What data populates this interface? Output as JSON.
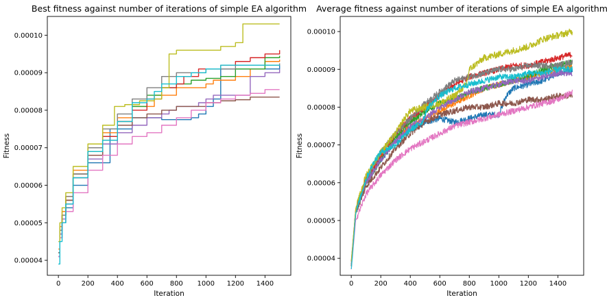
{
  "chart_data": [
    {
      "type": "line",
      "title": "Best fitness against number of iterations of simple EA algorithm",
      "xlabel": "Iteration",
      "ylabel": "Fitness",
      "xlim": [
        -75,
        1575
      ],
      "ylim": [
        3.6e-05,
        0.000105
      ],
      "xticks": [
        0,
        200,
        400,
        600,
        800,
        1000,
        1200,
        1400
      ],
      "xtick_labels": [
        "0",
        "200",
        "400",
        "600",
        "800",
        "1000",
        "1200",
        "1400"
      ],
      "yticks": [
        4e-05,
        5e-05,
        6e-05,
        7e-05,
        8e-05,
        9e-05,
        0.0001
      ],
      "ytick_labels": [
        "0.00004",
        "0.00005",
        "0.00006",
        "0.00007",
        "0.00008",
        "0.00009",
        "0.00010"
      ],
      "grid": false,
      "style": "step",
      "series": [
        {
          "color": "#1f77b4",
          "x": [
            0,
            10,
            25,
            50,
            100,
            200,
            350,
            500,
            700,
            900,
            950,
            1000,
            1050,
            1100,
            1499
          ],
          "y": [
            4.1e-05,
            4.6e-05,
            5e-05,
            5.4e-05,
            6e-05,
            6.6e-05,
            7.5e-05,
            7.8e-05,
            7.75e-05,
            7.8e-05,
            7.9e-05,
            8.1e-05,
            8.3e-05,
            9.1e-05,
            9.2e-05
          ]
        },
        {
          "color": "#ff7f0e",
          "x": [
            0,
            10,
            25,
            50,
            100,
            200,
            300,
            400,
            500,
            650,
            800,
            1000,
            1050,
            1200,
            1300,
            1400,
            1499
          ],
          "y": [
            4.3e-05,
            4.9e-05,
            5.3e-05,
            5.7e-05,
            6.4e-05,
            7e-05,
            7.4e-05,
            7.8e-05,
            8.1e-05,
            8.4e-05,
            8.6e-05,
            8.7e-05,
            8.8e-05,
            8.9e-05,
            9.1e-05,
            9.3e-05,
            9.35e-05
          ]
        },
        {
          "color": "#2ca02c",
          "x": [
            0,
            10,
            25,
            50,
            100,
            200,
            300,
            400,
            500,
            600,
            700,
            800,
            900,
            1000,
            1100,
            1200,
            1400,
            1499
          ],
          "y": [
            4.2e-05,
            4.8e-05,
            5.2e-05,
            5.6e-05,
            6.3e-05,
            6.9e-05,
            7.3e-05,
            7.7e-05,
            8.1e-05,
            8.4e-05,
            8.6e-05,
            8.7e-05,
            8.8e-05,
            8.85e-05,
            8.9e-05,
            9.1e-05,
            9.4e-05,
            9.45e-05
          ]
        },
        {
          "color": "#d62728",
          "x": [
            0,
            10,
            25,
            50,
            100,
            200,
            300,
            400,
            500,
            600,
            700,
            800,
            850,
            950,
            1100,
            1200,
            1300,
            1400,
            1499
          ],
          "y": [
            4.2e-05,
            4.8e-05,
            5.2e-05,
            5.6e-05,
            6.3e-05,
            6.8e-05,
            7.3e-05,
            7.7e-05,
            8e-05,
            8.3e-05,
            8.6e-05,
            8.7e-05,
            8.9e-05,
            9.1e-05,
            9.2e-05,
            9.3e-05,
            9.4e-05,
            9.5e-05,
            9.6e-05
          ]
        },
        {
          "color": "#9467bd",
          "x": [
            0,
            10,
            25,
            50,
            100,
            200,
            300,
            400,
            500,
            600,
            700,
            750,
            800,
            950,
            1000,
            1050,
            1300,
            1400,
            1499
          ],
          "y": [
            4.1e-05,
            4.7e-05,
            5.1e-05,
            5.5e-05,
            6.2e-05,
            6.7e-05,
            7.1e-05,
            7.4e-05,
            7.6e-05,
            7.8e-05,
            7.9e-05,
            8e-05,
            8.1e-05,
            8.2e-05,
            8.3e-05,
            8.4e-05,
            8.9e-05,
            9e-05,
            9.1e-05
          ]
        },
        {
          "color": "#8c564b",
          "x": [
            0,
            10,
            25,
            50,
            100,
            200,
            300,
            400,
            500,
            600,
            700,
            800,
            900,
            1000,
            1100,
            1200,
            1300,
            1499
          ],
          "y": [
            4.2e-05,
            4.8e-05,
            5.2e-05,
            5.6e-05,
            6.2e-05,
            6.8e-05,
            7.2e-05,
            7.6e-05,
            7.8e-05,
            7.9e-05,
            8e-05,
            8.1e-05,
            8.1e-05,
            8.2e-05,
            8.25e-05,
            8.28e-05,
            8.35e-05,
            8.35e-05
          ]
        },
        {
          "color": "#e377c2",
          "x": [
            0,
            10,
            25,
            50,
            100,
            200,
            300,
            400,
            500,
            600,
            700,
            800,
            900,
            1000,
            1100,
            1200,
            1300,
            1400,
            1499
          ],
          "y": [
            4.1e-05,
            4.6e-05,
            5e-05,
            5.3e-05,
            5.8e-05,
            6.4e-05,
            6.8e-05,
            7.1e-05,
            7.3e-05,
            7.4e-05,
            7.6e-05,
            7.8e-05,
            8e-05,
            8.2e-05,
            8.3e-05,
            8.4e-05,
            8.45e-05,
            8.55e-05,
            8.55e-05
          ]
        },
        {
          "color": "#7f7f7f",
          "x": [
            0,
            10,
            25,
            50,
            100,
            200,
            300,
            400,
            500,
            600,
            700,
            800,
            900,
            1000,
            1100,
            1200,
            1300,
            1499
          ],
          "y": [
            4.2e-05,
            4.8e-05,
            5.2e-05,
            5.7e-05,
            6.3e-05,
            7e-05,
            7.5e-05,
            7.9e-05,
            8.3e-05,
            8.6e-05,
            8.9e-05,
            9e-05,
            9e-05,
            9.1e-05,
            9.1e-05,
            9.2e-05,
            9.2e-05,
            9.25e-05
          ]
        },
        {
          "color": "#bcbd22",
          "x": [
            0,
            10,
            25,
            50,
            100,
            200,
            300,
            380,
            450,
            550,
            650,
            700,
            750,
            800,
            1000,
            1100,
            1200,
            1250,
            1499
          ],
          "y": [
            4.5e-05,
            5e-05,
            5.4e-05,
            5.8e-05,
            6.5e-05,
            7.1e-05,
            7.6e-05,
            8.1e-05,
            8.15e-05,
            8.25e-05,
            8.3e-05,
            8.6e-05,
            9.5e-05,
            9.6e-05,
            9.6e-05,
            9.7e-05,
            9.8e-05,
            0.000103,
            0.000103
          ]
        },
        {
          "color": "#17becf",
          "x": [
            0,
            10,
            25,
            50,
            100,
            200,
            300,
            400,
            500,
            600,
            650,
            700,
            800,
            900,
            1000,
            1100,
            1200,
            1300,
            1400,
            1499
          ],
          "y": [
            3.9e-05,
            4.5e-05,
            5e-05,
            5.5e-05,
            6.2e-05,
            6.9e-05,
            7.2e-05,
            7.7e-05,
            8.2e-05,
            8.3e-05,
            8.5e-05,
            8.7e-05,
            8.9e-05,
            9e-05,
            9.1e-05,
            9.2e-05,
            9.2e-05,
            9.2e-05,
            9.2e-05,
            9.2e-05
          ]
        }
      ]
    },
    {
      "type": "line",
      "title": "Average fitness against number of iterations of simple EA algorithm",
      "xlabel": "Iteration",
      "ylabel": "Fitness",
      "xlim": [
        -75,
        1575
      ],
      "ylim": [
        3.55e-05,
        0.000104
      ],
      "xticks": [
        0,
        200,
        400,
        600,
        800,
        1000,
        1200,
        1400
      ],
      "xtick_labels": [
        "0",
        "200",
        "400",
        "600",
        "800",
        "1000",
        "1200",
        "1400"
      ],
      "yticks": [
        4e-05,
        5e-05,
        6e-05,
        7e-05,
        8e-05,
        9e-05,
        0.0001
      ],
      "ytick_labels": [
        "0.00004",
        "0.00005",
        "0.00006",
        "0.00007",
        "0.00008",
        "0.00009",
        "0.00010"
      ],
      "grid": false,
      "style": "noisy",
      "series": [
        {
          "color": "#1f77b4",
          "noise": 8e-07,
          "x": [
            0,
            30,
            100,
            200,
            300,
            400,
            500,
            600,
            700,
            800,
            900,
            1000,
            1050,
            1100,
            1200,
            1300,
            1400,
            1499
          ],
          "y": [
            3.8e-05,
            5.2e-05,
            6.1e-05,
            6.6e-05,
            7.1e-05,
            7.4e-05,
            7.6e-05,
            7.7e-05,
            7.6e-05,
            7.7e-05,
            7.8e-05,
            7.8e-05,
            8.3e-05,
            8.5e-05,
            8.6e-05,
            8.7e-05,
            8.9e-05,
            9e-05
          ]
        },
        {
          "color": "#ff7f0e",
          "noise": 8e-07,
          "x": [
            0,
            30,
            100,
            200,
            300,
            400,
            500,
            600,
            700,
            800,
            900,
            1000,
            1100,
            1200,
            1300,
            1400,
            1499
          ],
          "y": [
            3.8e-05,
            5.3e-05,
            6.1e-05,
            6.7e-05,
            7.2e-05,
            7.5e-05,
            7.7e-05,
            7.9e-05,
            8.1e-05,
            8.3e-05,
            8.5e-05,
            8.6e-05,
            8.7e-05,
            8.8e-05,
            8.9e-05,
            9e-05,
            9.1e-05
          ]
        },
        {
          "color": "#2ca02c",
          "noise": 8e-07,
          "x": [
            0,
            30,
            100,
            200,
            300,
            400,
            500,
            600,
            700,
            800,
            900,
            1000,
            1100,
            1200,
            1300,
            1400,
            1499
          ],
          "y": [
            3.8e-05,
            5.2e-05,
            6e-05,
            6.6e-05,
            7.2e-05,
            7.6e-05,
            7.9e-05,
            8.1e-05,
            8.2e-05,
            8.4e-05,
            8.5e-05,
            8.6e-05,
            8.7e-05,
            8.8e-05,
            9e-05,
            9.1e-05,
            9.2e-05
          ]
        },
        {
          "color": "#d62728",
          "noise": 8e-07,
          "x": [
            0,
            30,
            100,
            200,
            300,
            400,
            500,
            600,
            700,
            800,
            900,
            1000,
            1100,
            1200,
            1300,
            1400,
            1499
          ],
          "y": [
            3.9e-05,
            5.3e-05,
            6.1e-05,
            6.7e-05,
            7.3e-05,
            7.7e-05,
            8e-05,
            8.3e-05,
            8.6e-05,
            8.8e-05,
            8.9e-05,
            9e-05,
            9.1e-05,
            9.1e-05,
            9.2e-05,
            9.3e-05,
            9.4e-05
          ]
        },
        {
          "color": "#9467bd",
          "noise": 8e-07,
          "x": [
            0,
            30,
            100,
            200,
            300,
            400,
            500,
            600,
            700,
            800,
            900,
            1000,
            1100,
            1200,
            1300,
            1400,
            1499
          ],
          "y": [
            3.8e-05,
            5.2e-05,
            6e-05,
            6.6e-05,
            7.1e-05,
            7.5e-05,
            7.7e-05,
            8e-05,
            8.2e-05,
            8.4e-05,
            8.5e-05,
            8.6e-05,
            8.7e-05,
            8.7e-05,
            8.8e-05,
            8.9e-05,
            8.9e-05
          ]
        },
        {
          "color": "#8c564b",
          "noise": 8e-07,
          "x": [
            0,
            30,
            100,
            200,
            300,
            400,
            500,
            600,
            700,
            800,
            900,
            1000,
            1100,
            1200,
            1300,
            1400,
            1499
          ],
          "y": [
            3.8e-05,
            5.2e-05,
            5.9e-05,
            6.4e-05,
            6.9e-05,
            7.3e-05,
            7.6e-05,
            7.8e-05,
            7.9e-05,
            8e-05,
            8e-05,
            8.1e-05,
            8.1e-05,
            8.2e-05,
            8.2e-05,
            8.3e-05,
            8.3e-05
          ]
        },
        {
          "color": "#e377c2",
          "noise": 8e-07,
          "x": [
            0,
            30,
            100,
            200,
            300,
            400,
            500,
            600,
            700,
            800,
            900,
            1000,
            1100,
            1200,
            1300,
            1400,
            1499
          ],
          "y": [
            3.7e-05,
            5e-05,
            5.7e-05,
            6.2e-05,
            6.6e-05,
            6.9e-05,
            7.1e-05,
            7.3e-05,
            7.5e-05,
            7.6e-05,
            7.7e-05,
            7.8e-05,
            7.9e-05,
            8e-05,
            8.1e-05,
            8.2e-05,
            8.4e-05
          ]
        },
        {
          "color": "#7f7f7f",
          "noise": 8e-07,
          "x": [
            0,
            30,
            100,
            200,
            300,
            400,
            500,
            600,
            700,
            800,
            900,
            1000,
            1100,
            1200,
            1300,
            1400,
            1499
          ],
          "y": [
            3.8e-05,
            5.2e-05,
            6.1e-05,
            6.8e-05,
            7.3e-05,
            7.7e-05,
            8.1e-05,
            8.4e-05,
            8.7e-05,
            8.8e-05,
            8.9e-05,
            9e-05,
            9e-05,
            9.1e-05,
            9.1e-05,
            9.1e-05,
            9.2e-05
          ]
        },
        {
          "color": "#bcbd22",
          "noise": 9e-07,
          "x": [
            0,
            30,
            100,
            200,
            300,
            360,
            400,
            500,
            600,
            700,
            780,
            800,
            900,
            1000,
            1100,
            1200,
            1300,
            1400,
            1499
          ],
          "y": [
            3.9e-05,
            5.3e-05,
            6.2e-05,
            6.8e-05,
            7.3e-05,
            7.7e-05,
            7.9e-05,
            8e-05,
            8.1e-05,
            8.3e-05,
            8.6e-05,
            9e-05,
            9.3e-05,
            9.4e-05,
            9.5e-05,
            9.6e-05,
            9.8e-05,
            9.9e-05,
            0.0001
          ]
        },
        {
          "color": "#17becf",
          "noise": 8e-07,
          "x": [
            0,
            30,
            100,
            160,
            200,
            300,
            400,
            480,
            520,
            600,
            700,
            800,
            900,
            1000,
            1100,
            1200,
            1300,
            1400,
            1499
          ],
          "y": [
            3.7e-05,
            5.2e-05,
            6.1e-05,
            6.6e-05,
            6.8e-05,
            7e-05,
            7.4e-05,
            7.6e-05,
            8e-05,
            8.3e-05,
            8.5e-05,
            8.6e-05,
            8.7e-05,
            8.8e-05,
            8.8e-05,
            8.9e-05,
            8.9e-05,
            9e-05,
            9e-05
          ]
        }
      ]
    }
  ]
}
